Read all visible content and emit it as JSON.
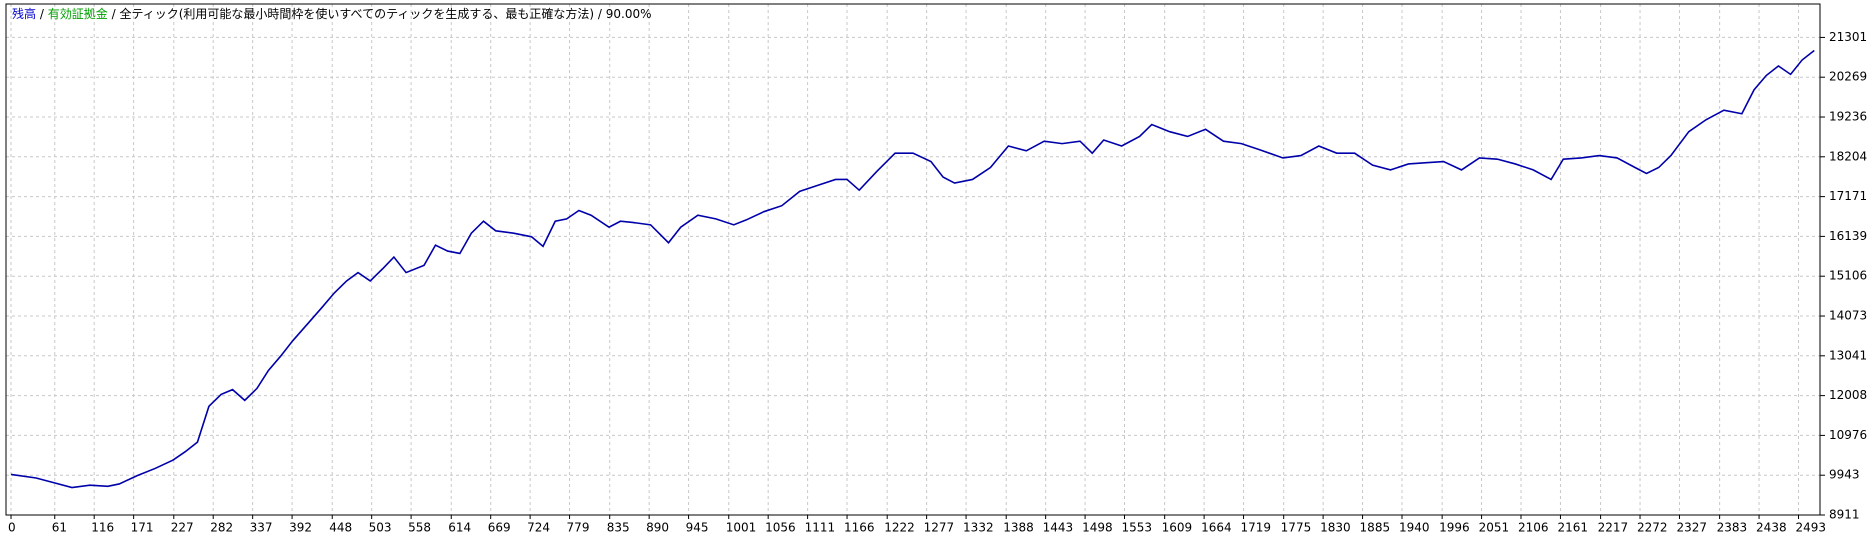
{
  "chart_data": {
    "type": "line",
    "header": {
      "separator": "/",
      "balance_label": {
        "text": "残高",
        "color": "#0000cc"
      },
      "equity_label": {
        "text": "有効証拠金",
        "color": "#00a000"
      },
      "model": "全ティック(利用可能な最小時間枠を使いすべてのティックを生成する、最も正確な方法)",
      "quality": "90.00%"
    },
    "x": [
      0,
      35,
      60,
      85,
      110,
      135,
      151,
      176,
      201,
      226,
      243,
      260,
      276,
      293,
      309,
      326,
      343,
      359,
      376,
      393,
      418,
      434,
      451,
      468,
      484,
      501,
      518,
      534,
      551,
      576,
      592,
      609,
      626,
      642,
      659,
      676,
      701,
      726,
      742,
      759,
      775,
      792,
      809,
      834,
      850,
      867,
      892,
      917,
      934,
      958,
      983,
      1008,
      1025,
      1050,
      1075,
      1100,
      1125,
      1150,
      1166,
      1183,
      1208,
      1233,
      1258,
      1283,
      1300,
      1316,
      1341,
      1366,
      1391,
      1416,
      1441,
      1466,
      1491,
      1508,
      1524,
      1549,
      1574,
      1591,
      1616,
      1641,
      1666,
      1691,
      1716,
      1741,
      1774,
      1799,
      1824,
      1849,
      1874,
      1899,
      1924,
      1949,
      1974,
      1998,
      2023,
      2048,
      2073,
      2098,
      2123,
      2148,
      2165,
      2190,
      2215,
      2240,
      2265,
      2281,
      2298,
      2315,
      2340,
      2364,
      2389,
      2414,
      2431,
      2448,
      2465,
      2482,
      2498,
      2515
    ],
    "series": [
      {
        "name": "残高",
        "color": "#0000aa",
        "values": [
          9964,
          9871,
          9747,
          9624,
          9685,
          9655,
          9716,
          9933,
          10119,
          10336,
          10553,
          10801,
          11730,
          12040,
          12164,
          11885,
          12195,
          12660,
          13031,
          13434,
          13961,
          14302,
          14673,
          14983,
          15200,
          14983,
          15293,
          15603,
          15200,
          15386,
          15912,
          15758,
          15696,
          16222,
          16532,
          16284,
          16222,
          16129,
          15881,
          16532,
          16594,
          16811,
          16687,
          16377,
          16532,
          16501,
          16439,
          15974,
          16377,
          16687,
          16594,
          16439,
          16563,
          16780,
          16935,
          17307,
          17462,
          17616,
          17616,
          17338,
          17833,
          18298,
          18298,
          18081,
          17678,
          17523,
          17616,
          17926,
          18484,
          18360,
          18608,
          18546,
          18608,
          18298,
          18639,
          18484,
          18732,
          19041,
          18855,
          18732,
          18917,
          18608,
          18546,
          18391,
          18174,
          18236,
          18484,
          18298,
          18298,
          17988,
          17864,
          18019,
          18050,
          18081,
          17864,
          18174,
          18143,
          18019,
          17864,
          17616,
          18143,
          18174,
          18236,
          18174,
          17926,
          17771,
          17926,
          18236,
          18855,
          19165,
          19413,
          19320,
          19940,
          20312,
          20560,
          20343,
          20714,
          20962
        ]
      }
    ],
    "xlim": [
      -7,
      2523
    ],
    "xticks": [
      0,
      61,
      116,
      171,
      227,
      282,
      337,
      392,
      448,
      503,
      558,
      614,
      669,
      724,
      779,
      835,
      890,
      945,
      1001,
      1056,
      1111,
      1166,
      1222,
      1277,
      1332,
      1388,
      1443,
      1498,
      1553,
      1609,
      1664,
      1719,
      1775,
      1830,
      1885,
      1940,
      1996,
      2051,
      2106,
      2161,
      2217,
      2272,
      2327,
      2383,
      2438,
      2493
    ],
    "ylim": [
      8911,
      22168
    ],
    "yticks": [
      8911,
      9943,
      10976,
      12008,
      13041,
      14073,
      15106,
      16139,
      17171,
      18204,
      19236,
      20269,
      21301
    ],
    "grid": true
  }
}
